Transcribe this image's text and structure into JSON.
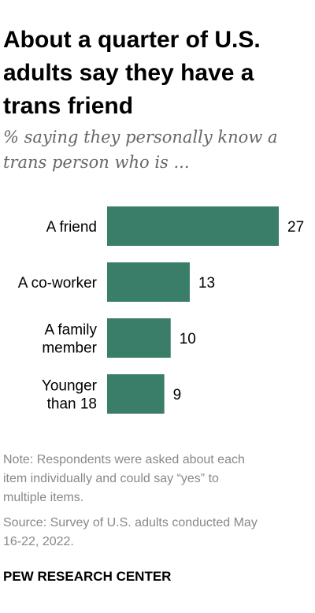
{
  "title_lines": [
    "About a quarter of U.S.",
    "adults say they have a",
    "trans friend"
  ],
  "subtitle_lines": [
    "% saying they personally know a",
    "trans person who is ..."
  ],
  "chart_data": {
    "type": "bar",
    "orientation": "horizontal",
    "categories": [
      "A friend",
      "A co-worker",
      "A family member",
      "Younger than 18"
    ],
    "category_label_lines": [
      [
        "A friend"
      ],
      [
        "A co-worker"
      ],
      [
        "A family",
        "member"
      ],
      [
        "Younger",
        "than 18"
      ]
    ],
    "values": [
      27,
      13,
      10,
      9
    ],
    "data_labels": [
      "27",
      "13",
      "10",
      "9"
    ],
    "bar_color": "#3a7d68",
    "xlim": [
      0,
      27
    ],
    "grid": false,
    "legend": "none"
  },
  "note_lines": [
    "Note: Respondents were asked about each",
    "item individually and could say “yes” to",
    "multiple items."
  ],
  "source_lines": [
    "Source: Survey of U.S. adults conducted May",
    "16-22, 2022."
  ],
  "brand": "PEW RESEARCH CENTER"
}
